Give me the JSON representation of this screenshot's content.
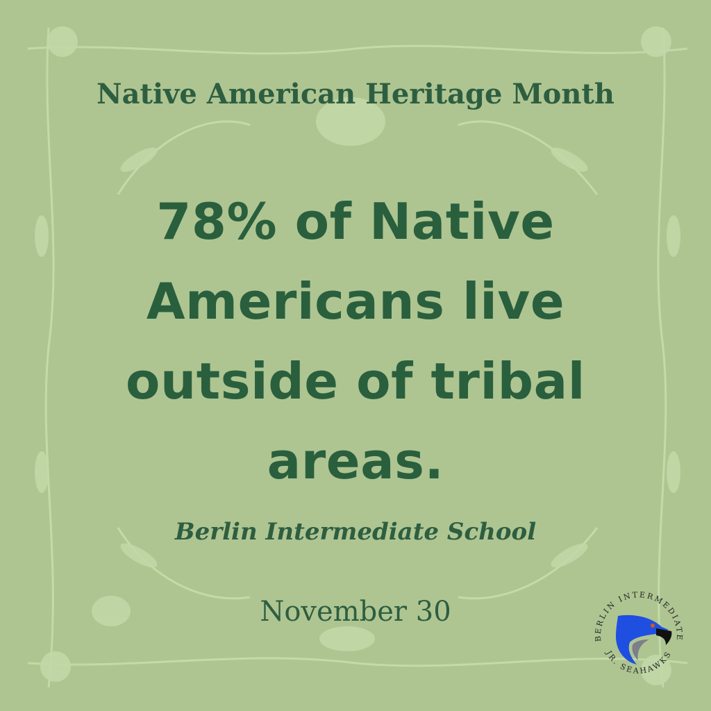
{
  "heading": "Native American Heritage Month",
  "fact": "78% of Native Americans live outside of tribal areas.",
  "school": "Berlin Intermediate School",
  "date": "November 30",
  "logo": {
    "top_text": "BERLIN INTERMEDIATE",
    "bottom_text": "JR. SEAHAWKS",
    "icon": "seahawk-head-icon"
  },
  "colors": {
    "background": "#aec592",
    "text": "#2a5f3d",
    "decoration": "#c8dcae",
    "logo_blue": "#1f4fe0"
  }
}
